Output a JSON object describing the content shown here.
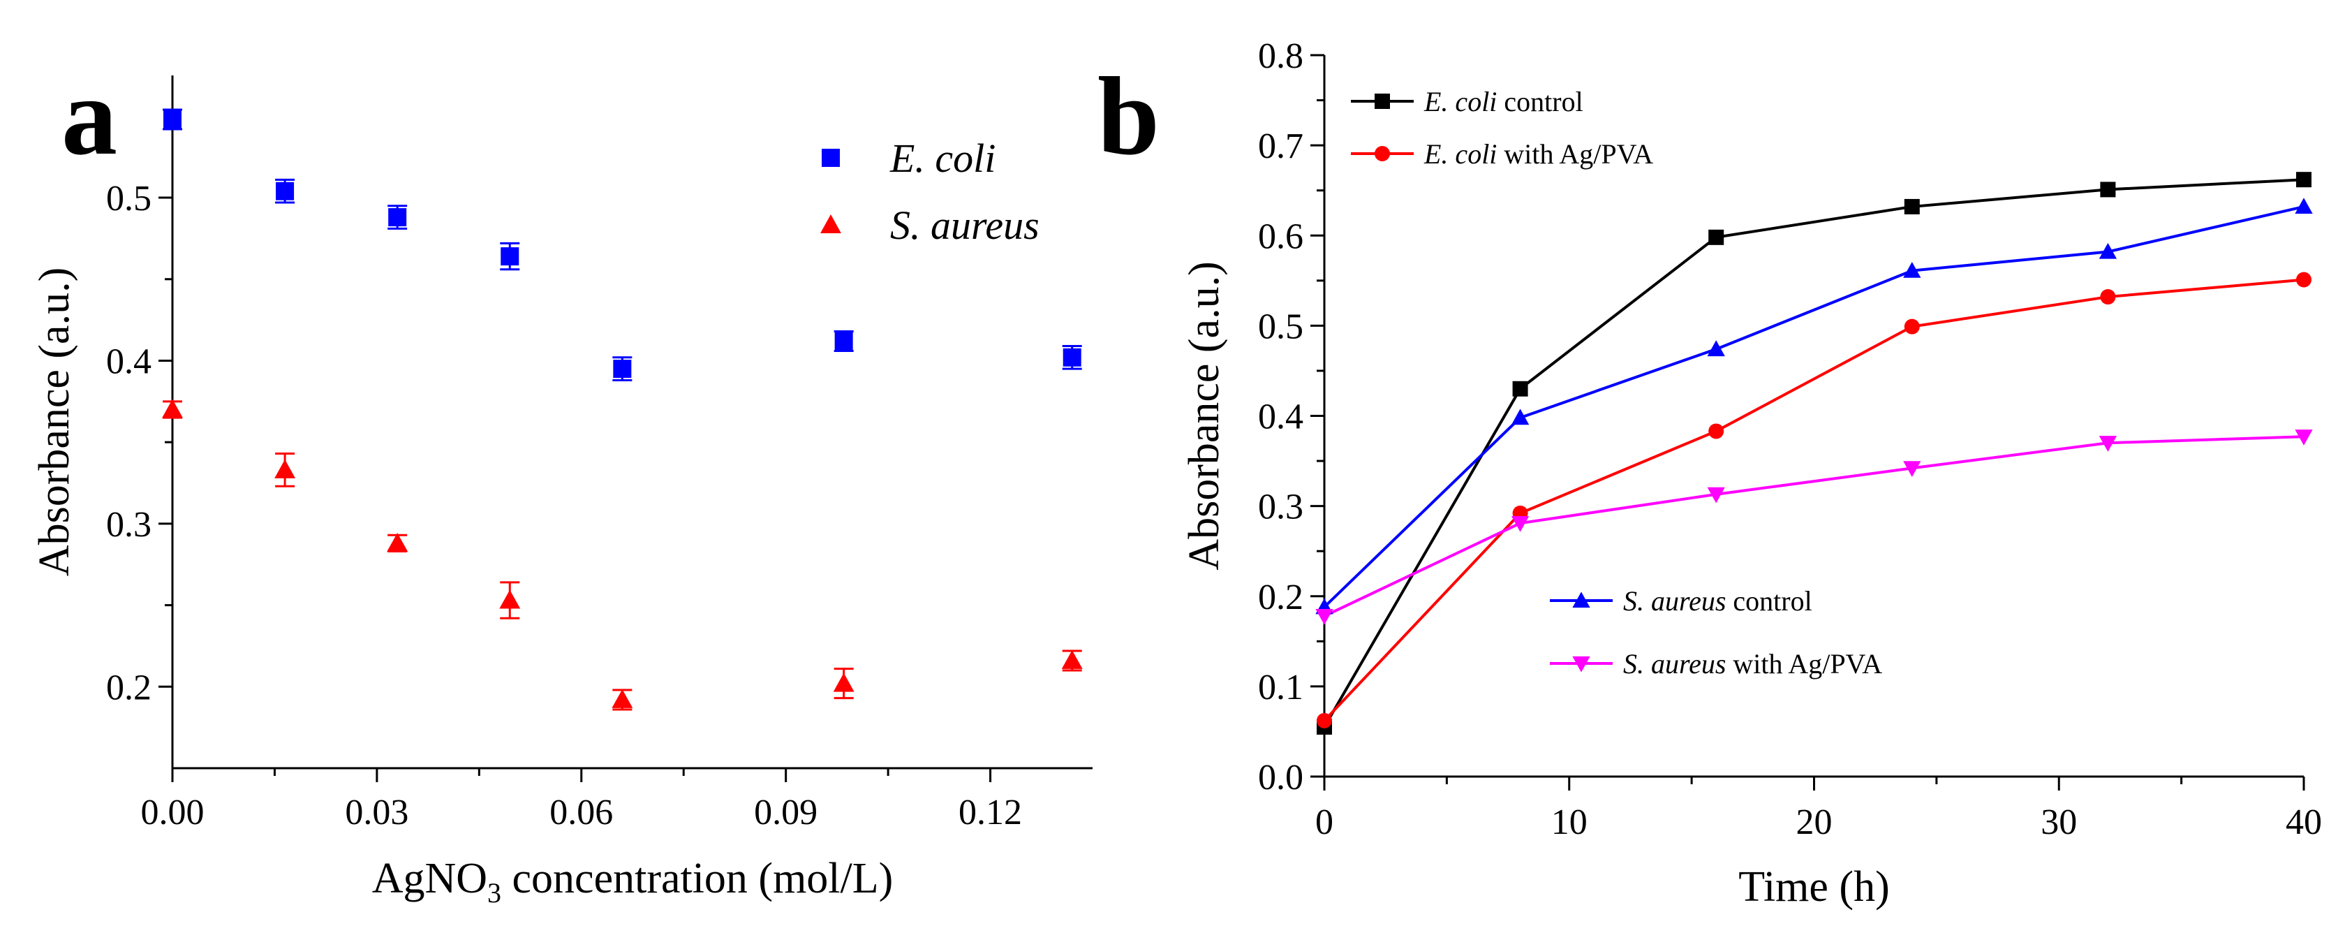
{
  "chart_data": [
    {
      "panel": "a",
      "type": "scatter",
      "xlabel_main": "AgNO",
      "xlabel_sub": "3",
      "xlabel_rest": " concentration (mol/L)",
      "ylabel": "Absorbance (a.u.)",
      "xlim": [
        0.0,
        0.135
      ],
      "ylim": [
        0.15,
        0.575
      ],
      "x_ticks": [
        "0.00",
        "0.03",
        "0.06",
        "0.09",
        "0.12"
      ],
      "x_tick_values": [
        0.0,
        0.03,
        0.06,
        0.09,
        0.12
      ],
      "y_ticks": [
        "0.2",
        "0.3",
        "0.4",
        "0.5"
      ],
      "y_tick_values": [
        0.2,
        0.3,
        0.4,
        0.5
      ],
      "legend_position": "top-right",
      "series": [
        {
          "name_italic": "E. coli",
          "name_rest": "",
          "marker": "square",
          "color": "#0000ff",
          "x": [
            0.0,
            0.0165,
            0.033,
            0.0495,
            0.066,
            0.0985,
            0.132
          ],
          "y": [
            0.548,
            0.504,
            0.488,
            0.464,
            0.395,
            0.412,
            0.402
          ],
          "err": [
            0.006,
            0.007,
            0.007,
            0.008,
            0.007,
            0.006,
            0.007
          ]
        },
        {
          "name_italic": "S. aureus",
          "name_rest": "",
          "marker": "triangle-up",
          "color": "#ff0000",
          "x": [
            0.0,
            0.0165,
            0.033,
            0.0495,
            0.066,
            0.0985,
            0.132
          ],
          "y": [
            0.37,
            0.333,
            0.288,
            0.253,
            0.192,
            0.202,
            0.216
          ],
          "err": [
            0.005,
            0.01,
            0.005,
            0.011,
            0.006,
            0.009,
            0.006
          ]
        }
      ]
    },
    {
      "panel": "b",
      "type": "line",
      "xlabel": "Time (h)",
      "ylabel": "Absorbance (a.u.)",
      "xlim": [
        0,
        40
      ],
      "ylim": [
        0.0,
        0.8
      ],
      "x_ticks": [
        "0",
        "10",
        "20",
        "30",
        "40"
      ],
      "x_tick_values": [
        0,
        10,
        20,
        30,
        40
      ],
      "y_ticks": [
        "0.0",
        "0.1",
        "0.2",
        "0.3",
        "0.4",
        "0.5",
        "0.6",
        "0.7",
        "0.8"
      ],
      "y_tick_values": [
        0.0,
        0.1,
        0.2,
        0.3,
        0.4,
        0.5,
        0.6,
        0.7,
        0.8
      ],
      "legend_position": "top-left and middle-left",
      "series": [
        {
          "name_italic": "E. coli",
          "name_rest": " control",
          "marker": "square",
          "color": "#000000",
          "x": [
            0,
            8,
            16,
            24,
            32,
            40
          ],
          "y": [
            0.055,
            0.43,
            0.598,
            0.632,
            0.651,
            0.662
          ]
        },
        {
          "name_italic": "E. coli",
          "name_rest": " with Ag/PVA",
          "marker": "circle",
          "color": "#ff0000",
          "x": [
            0,
            8,
            16,
            24,
            32,
            40
          ],
          "y": [
            0.062,
            0.292,
            0.383,
            0.499,
            0.532,
            0.551
          ]
        },
        {
          "name_italic": "S. aureus",
          "name_rest": " control",
          "marker": "triangle-up",
          "color": "#0000ff",
          "x": [
            0,
            8,
            16,
            24,
            32,
            40
          ],
          "y": [
            0.188,
            0.398,
            0.474,
            0.561,
            0.582,
            0.632
          ]
        },
        {
          "name_italic": "S. aureus",
          "name_rest": " with Ag/PVA",
          "marker": "triangle-down",
          "color": "#ff00ff",
          "x": [
            0,
            8,
            16,
            24,
            32,
            40
          ],
          "y": [
            0.178,
            0.281,
            0.313,
            0.342,
            0.37,
            0.377
          ]
        }
      ]
    }
  ]
}
